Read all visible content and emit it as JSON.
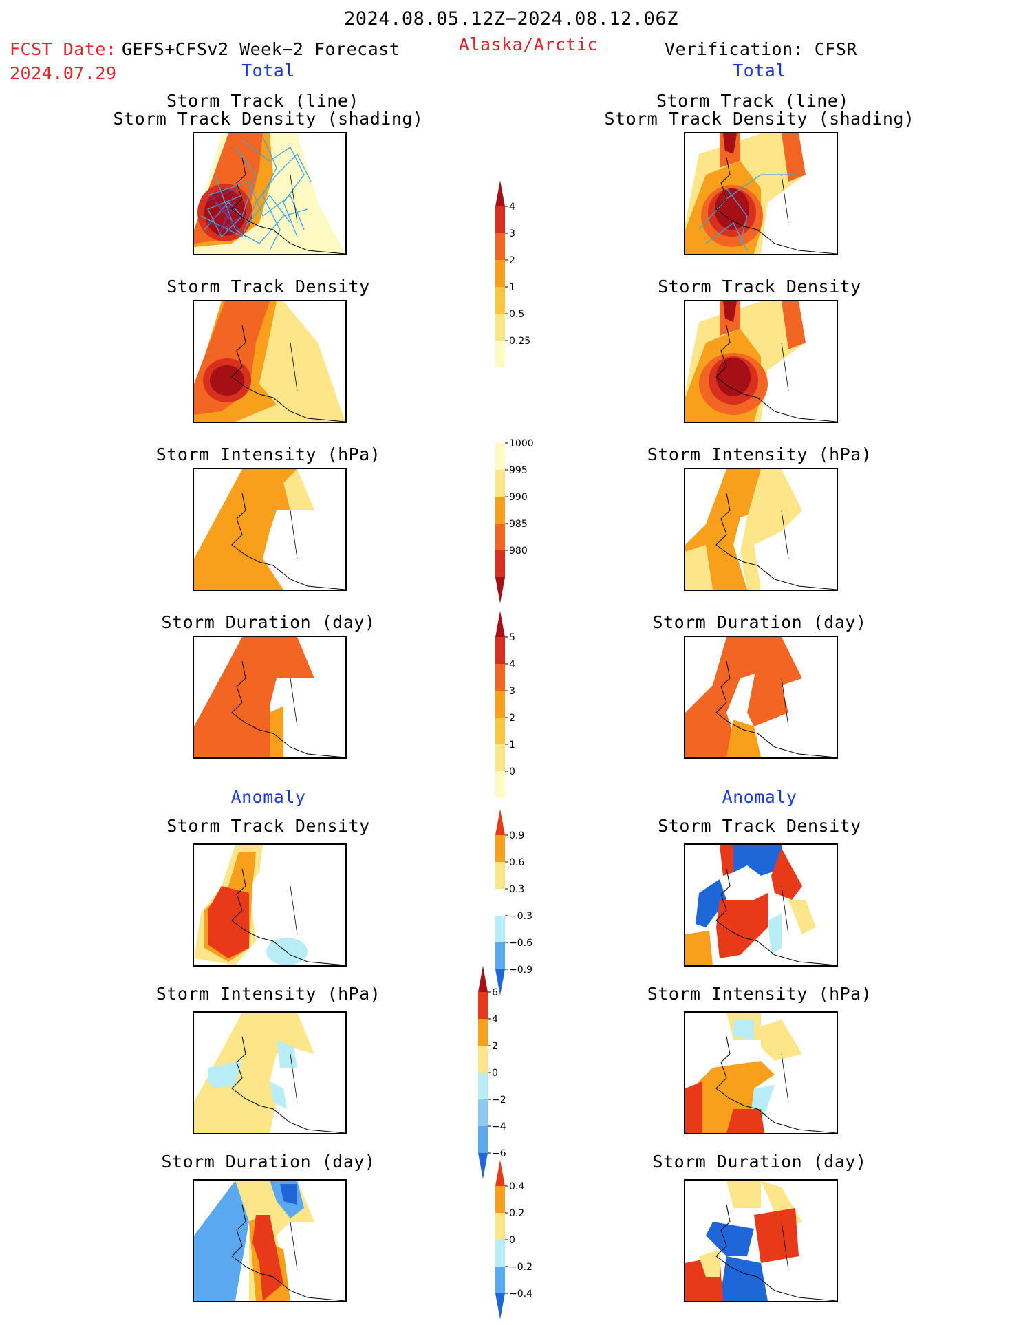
{
  "header": {
    "period": "2024.08.05.12Z−2024.08.12.06Z",
    "fcst_date_label": "FCST Date:",
    "forecast_name": "GEFS+CFSv2 Week−2 Forecast",
    "fcst_date": "2024.07.29",
    "region": "Alaska/Arctic",
    "verification": "Verification: CFSR"
  },
  "columns": {
    "left_total": "Total",
    "right_total": "Total",
    "left_anomaly": "Anomaly",
    "right_anomaly": "Anomaly"
  },
  "panels": {
    "track_line": "Storm Track (line)",
    "track_shading": "Storm Track Density (shading)",
    "density": "Storm Track Density",
    "intensity": "Storm Intensity (hPa)",
    "duration": "Storm Duration (day)"
  },
  "colorbars": [
    {
      "name": "density-total",
      "labels": [
        "4",
        "3",
        "2",
        "1",
        "0.5",
        "0.25"
      ],
      "colors": [
        "#a50f15",
        "#d7301f",
        "#f26522",
        "#f8a01c",
        "#f9c642",
        "#fde68a",
        "#fff9c4"
      ]
    },
    {
      "name": "intensity-total",
      "labels": [
        "1000",
        "995",
        "990",
        "985",
        "980"
      ],
      "colors": [
        "#fff9c4",
        "#fde68a",
        "#f8a01c",
        "#f26522",
        "#d7301f",
        "#a50f15"
      ]
    },
    {
      "name": "duration-total",
      "labels": [
        "5",
        "4",
        "3",
        "2",
        "1",
        "0"
      ],
      "colors": [
        "#a50f15",
        "#d7301f",
        "#f26522",
        "#f8a01c",
        "#f9c642",
        "#fde68a",
        "#fff9c4"
      ]
    },
    {
      "name": "density-anomaly",
      "labels": [
        "0.9",
        "0.6",
        "0.3",
        "−0.3",
        "−0.6",
        "−0.9"
      ],
      "colors": [
        "#e83a18",
        "#f8a01c",
        "#fde68a",
        "#ffffff",
        "#b8ecf6",
        "#5aa8f0",
        "#1f66d9"
      ]
    },
    {
      "name": "intensity-anomaly",
      "labels": [
        "6",
        "4",
        "2",
        "0",
        "−2",
        "−4",
        "−6"
      ],
      "colors": [
        "#a50f15",
        "#e83a18",
        "#f8a01c",
        "#fde68a",
        "#b8ecf6",
        "#8ccaf3",
        "#5aa8f0",
        "#1f66d9"
      ]
    },
    {
      "name": "duration-anomaly",
      "labels": [
        "0.4",
        "0.2",
        "0",
        "−0.2",
        "−0.4"
      ],
      "colors": [
        "#e83a18",
        "#f8a01c",
        "#fde68a",
        "#b8ecf6",
        "#5aa8f0",
        "#1f66d9"
      ]
    }
  ],
  "colors": {
    "title_red": "#e8202a",
    "label_blue": "#1a37e6",
    "dark_red": "#a50f15",
    "red": "#d7301f",
    "orange_red": "#f26522",
    "orange": "#f8a01c",
    "light_orange": "#f9c642",
    "yellow": "#fde68a",
    "light_blue": "#b8ecf6",
    "blue": "#5aa8f0",
    "dark_blue": "#1f66d9",
    "track_line": "#39a9e8"
  }
}
